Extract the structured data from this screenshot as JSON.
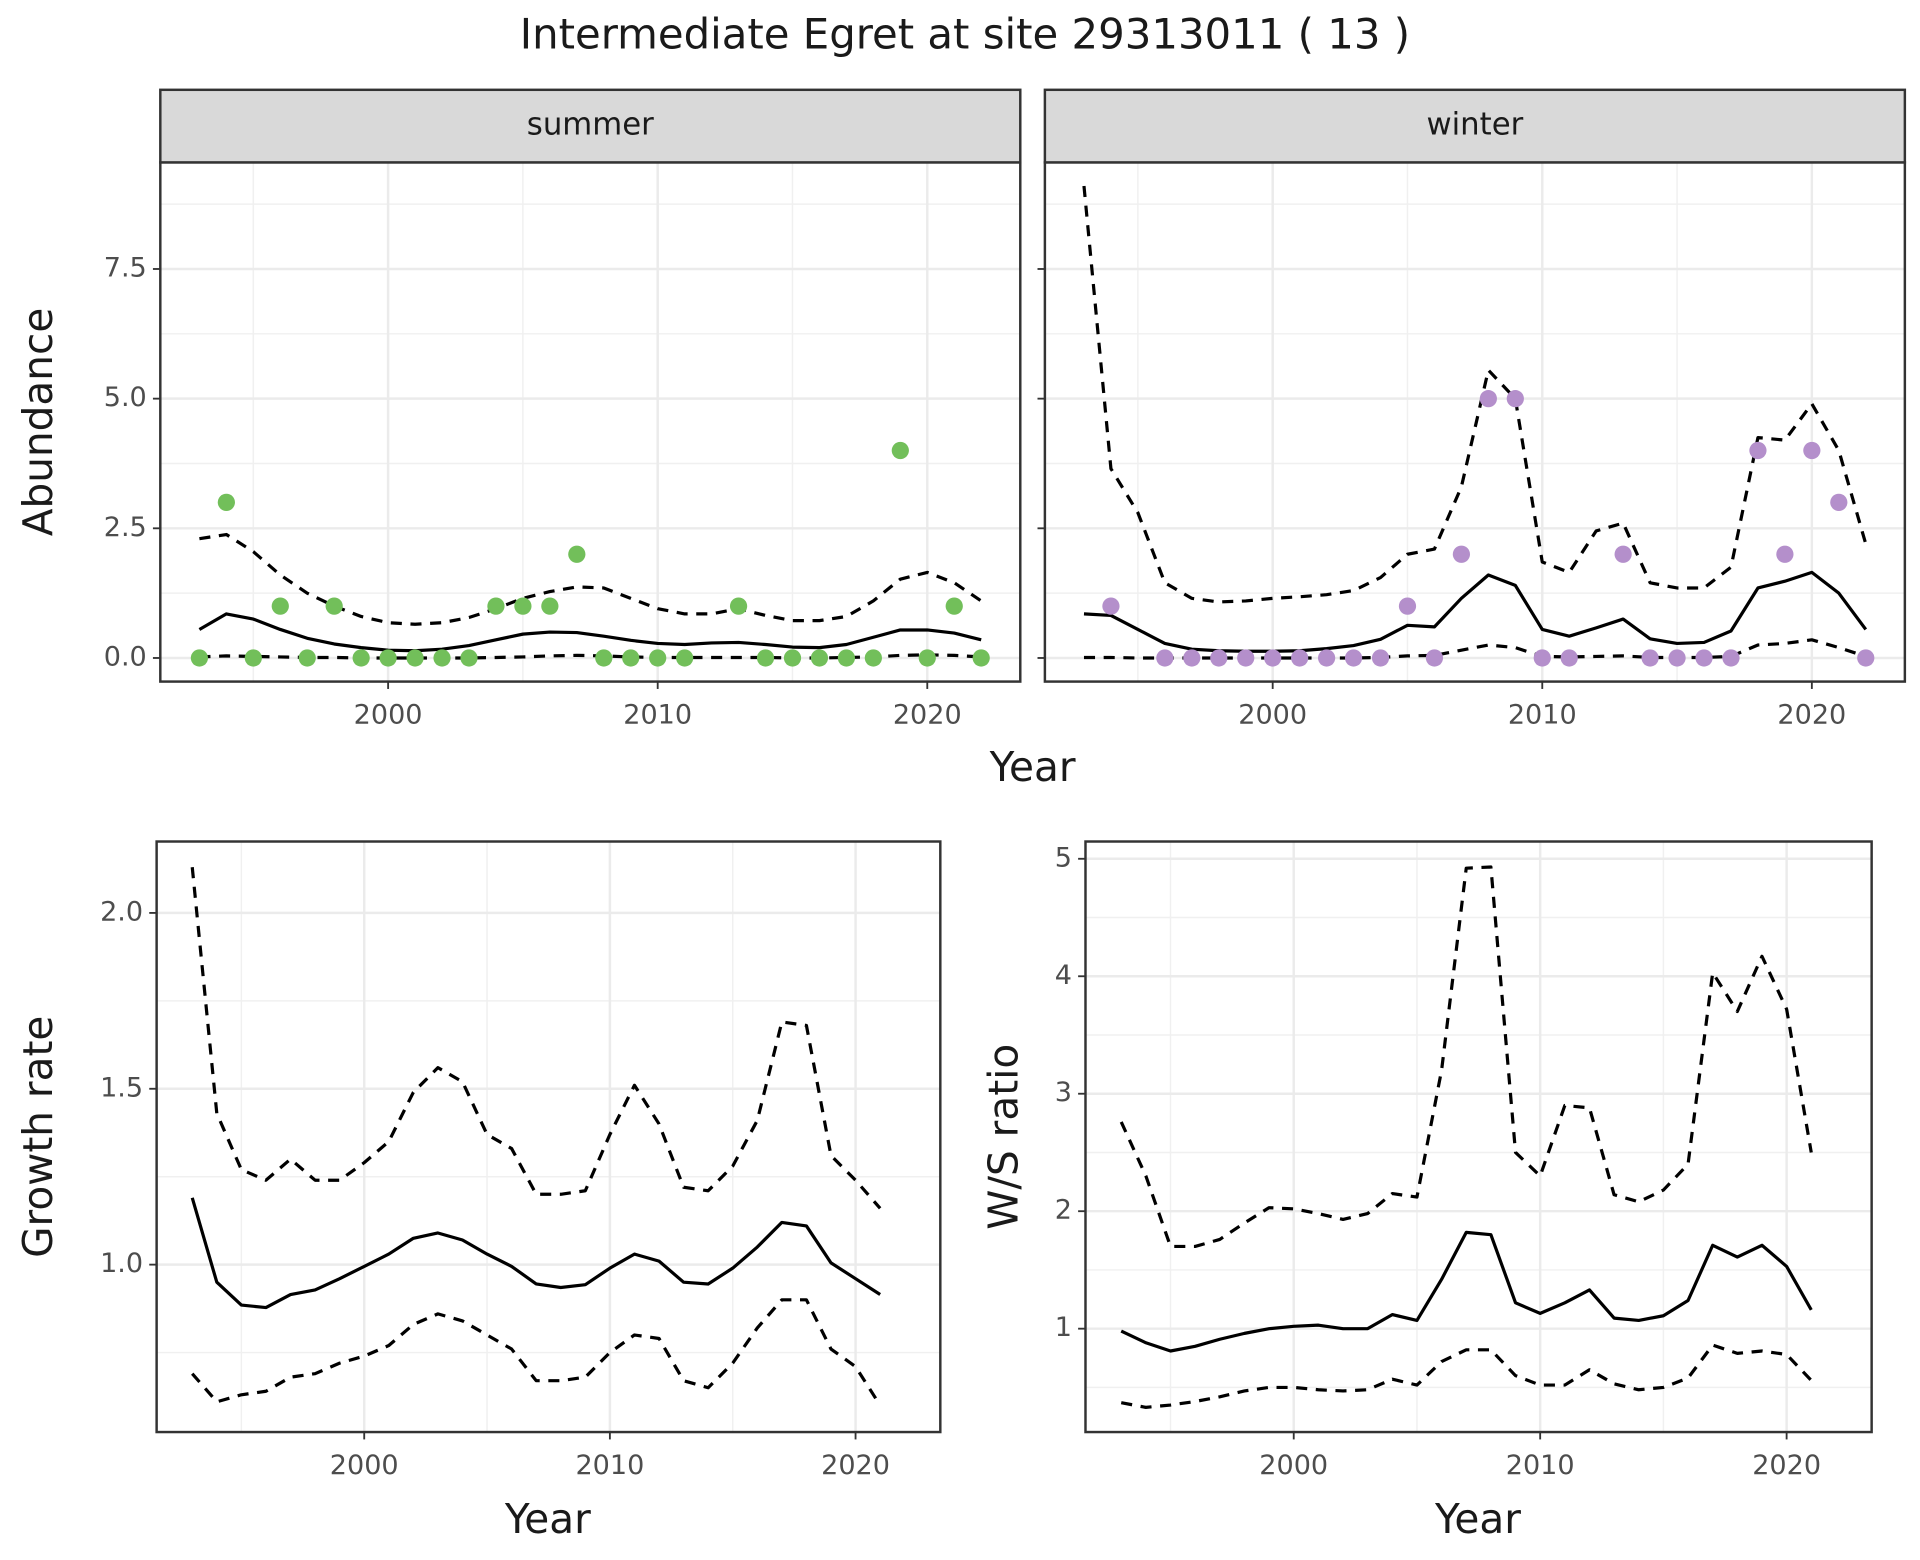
{
  "title": "Intermediate Egret at site 29313011 ( 13 )",
  "chart_data": [
    {
      "type": "line",
      "facet": "summer",
      "xlabel": "Year",
      "ylabel": "Abundance",
      "x": [
        1993,
        1994,
        1995,
        1996,
        1997,
        1998,
        1999,
        2000,
        2001,
        2002,
        2003,
        2004,
        2005,
        2006,
        2007,
        2008,
        2009,
        2010,
        2011,
        2012,
        2013,
        2014,
        2015,
        2016,
        2017,
        2018,
        2019,
        2020,
        2021,
        2022
      ],
      "xlim": [
        1991.55,
        2023.45
      ],
      "xticks": [
        2000,
        2010,
        2020
      ],
      "ylim": [
        -0.455,
        9.555
      ],
      "yticks": [
        {
          "value": 0,
          "label": "0.0"
        },
        2.5,
        {
          "value": 5,
          "label": "5.0"
        },
        7.5
      ],
      "grid": true,
      "series": [
        {
          "type": "line",
          "style": "solid",
          "color": "#000000",
          "values": [
            0.55,
            0.85,
            0.75,
            0.55,
            0.38,
            0.27,
            0.2,
            0.15,
            0.14,
            0.17,
            0.24,
            0.35,
            0.46,
            0.5,
            0.49,
            0.42,
            0.34,
            0.28,
            0.26,
            0.29,
            0.3,
            0.26,
            0.21,
            0.2,
            0.26,
            0.4,
            0.54,
            0.54,
            0.48,
            0.35
          ]
        },
        {
          "type": "line",
          "style": "dashed",
          "color": "#000000",
          "values": [
            2.3,
            2.38,
            2.05,
            1.6,
            1.25,
            1.0,
            0.8,
            0.68,
            0.65,
            0.68,
            0.78,
            0.95,
            1.15,
            1.28,
            1.37,
            1.35,
            1.15,
            0.95,
            0.85,
            0.85,
            0.95,
            0.82,
            0.72,
            0.72,
            0.8,
            1.1,
            1.52,
            1.65,
            1.45,
            1.1
          ]
        },
        {
          "type": "line",
          "style": "dashed",
          "color": "#000000",
          "values": [
            0.02,
            0.04,
            0.03,
            0.02,
            0.01,
            0.01,
            0,
            0,
            0,
            0,
            0,
            0.01,
            0.02,
            0.04,
            0.05,
            0.04,
            0.02,
            0.01,
            0.01,
            0.01,
            0.01,
            0.01,
            0,
            0,
            0.01,
            0.02,
            0.05,
            0.06,
            0.05,
            0.02
          ]
        },
        {
          "type": "scatter",
          "color": "#72bf5a",
          "values": [
            0,
            3,
            0,
            1,
            0,
            1,
            0,
            0,
            0,
            0,
            0,
            1,
            1,
            1,
            2,
            0,
            0,
            0,
            0,
            null,
            1,
            0,
            0,
            0,
            0,
            0,
            4,
            0,
            1,
            0
          ]
        }
      ]
    },
    {
      "type": "line",
      "facet": "winter",
      "x": [
        1993,
        1994,
        1995,
        1996,
        1997,
        1998,
        1999,
        2000,
        2001,
        2002,
        2003,
        2004,
        2005,
        2006,
        2007,
        2008,
        2009,
        2010,
        2011,
        2012,
        2013,
        2014,
        2015,
        2016,
        2017,
        2018,
        2019,
        2020,
        2021,
        2022
      ],
      "xlim": [
        1991.55,
        2023.45
      ],
      "xticks": [
        2000,
        2010,
        2020
      ],
      "ylim": [
        -0.455,
        9.555
      ],
      "yticks": [
        0,
        2.5,
        5,
        7.5
      ],
      "grid": true,
      "series": [
        {
          "type": "line",
          "style": "solid",
          "color": "#000000",
          "values": [
            0.85,
            0.82,
            0.55,
            0.28,
            0.17,
            0.14,
            0.13,
            0.13,
            0.14,
            0.18,
            0.24,
            0.36,
            0.63,
            0.6,
            1.15,
            1.6,
            1.4,
            0.55,
            0.42,
            0.58,
            0.75,
            0.37,
            0.28,
            0.3,
            0.52,
            1.35,
            1.48,
            1.65,
            1.25,
            0.55
          ]
        },
        {
          "type": "line",
          "style": "dashed",
          "color": "#000000",
          "values": [
            9.1,
            3.65,
            2.8,
            1.45,
            1.15,
            1.08,
            1.1,
            1.15,
            1.18,
            1.22,
            1.3,
            1.55,
            2.0,
            2.1,
            3.3,
            5.55,
            5.0,
            1.85,
            1.65,
            2.45,
            2.6,
            1.45,
            1.35,
            1.35,
            1.75,
            4.25,
            4.2,
            4.9,
            4.0,
            2.2
          ]
        },
        {
          "type": "line",
          "style": "dashed",
          "color": "#000000",
          "values": [
            0.01,
            0.01,
            0,
            0,
            0,
            0,
            0,
            0,
            0,
            0,
            0,
            0.01,
            0.04,
            0.05,
            0.15,
            0.25,
            0.2,
            0.03,
            0.02,
            0.03,
            0.04,
            0.01,
            0.01,
            0.01,
            0.03,
            0.25,
            0.28,
            0.35,
            0.2,
            0.03
          ]
        },
        {
          "type": "scatter",
          "color": "#b48fcb",
          "values": [
            null,
            1,
            null,
            0,
            0,
            0,
            0,
            0,
            0,
            0,
            0,
            0,
            1,
            0,
            2,
            5,
            5,
            0,
            0,
            null,
            2,
            0,
            0,
            0,
            0,
            4,
            2,
            4,
            3,
            0
          ]
        }
      ]
    },
    {
      "type": "line",
      "xlabel": "Year",
      "ylabel": "Growth rate",
      "x": [
        1993,
        1994,
        1995,
        1996,
        1997,
        1998,
        1999,
        2000,
        2001,
        2002,
        2003,
        2004,
        2005,
        2006,
        2007,
        2008,
        2009,
        2010,
        2011,
        2012,
        2013,
        2014,
        2015,
        2016,
        2017,
        2018,
        2019,
        2020,
        2021
      ],
      "xlim": [
        1991.55,
        2023.45
      ],
      "xticks": [
        2000,
        2010,
        2020
      ],
      "ylim": [
        0.524,
        2.203
      ],
      "yticks": [
        {
          "value": 1,
          "label": "1.0"
        },
        1.5,
        {
          "value": 2,
          "label": "2.0"
        }
      ],
      "grid": true,
      "series": [
        {
          "type": "line",
          "style": "solid",
          "color": "#000000",
          "values": [
            1.19,
            0.95,
            0.885,
            0.878,
            0.915,
            0.928,
            0.96,
            0.995,
            1.03,
            1.075,
            1.09,
            1.07,
            1.03,
            0.995,
            0.945,
            0.935,
            0.943,
            0.99,
            1.03,
            1.01,
            0.95,
            0.945,
            0.99,
            1.05,
            1.12,
            1.11,
            1.005,
            0.96,
            0.915
          ]
        },
        {
          "type": "line",
          "style": "dashed",
          "color": "#000000",
          "values": [
            2.13,
            1.43,
            1.27,
            1.24,
            1.3,
            1.24,
            1.24,
            1.29,
            1.35,
            1.49,
            1.56,
            1.52,
            1.37,
            1.33,
            1.2,
            1.2,
            1.21,
            1.37,
            1.51,
            1.4,
            1.22,
            1.21,
            1.28,
            1.41,
            1.69,
            1.68,
            1.31,
            1.24,
            1.16
          ]
        },
        {
          "type": "line",
          "style": "dashed",
          "color": "#000000",
          "values": [
            0.69,
            0.61,
            0.63,
            0.64,
            0.68,
            0.69,
            0.72,
            0.74,
            0.77,
            0.83,
            0.86,
            0.84,
            0.8,
            0.76,
            0.67,
            0.67,
            0.68,
            0.75,
            0.8,
            0.79,
            0.67,
            0.65,
            0.72,
            0.82,
            0.9,
            0.9,
            0.76,
            0.71,
            0.6
          ]
        }
      ]
    },
    {
      "type": "line",
      "xlabel": "Year",
      "ylabel": "W/S ratio",
      "x": [
        1993,
        1994,
        1995,
        1996,
        1997,
        1998,
        1999,
        2000,
        2001,
        2002,
        2003,
        2004,
        2005,
        2006,
        2007,
        2008,
        2009,
        2010,
        2011,
        2012,
        2013,
        2014,
        2015,
        2016,
        2017,
        2018,
        2019,
        2020,
        2021
      ],
      "xlim": [
        1991.55,
        2023.45
      ],
      "xticks": [
        2000,
        2010,
        2020
      ],
      "ylim": [
        0.12,
        5.147
      ],
      "yticks": [
        1,
        2,
        3,
        4,
        5
      ],
      "grid": true,
      "series": [
        {
          "type": "line",
          "style": "solid",
          "color": "#000000",
          "values": [
            0.98,
            0.88,
            0.81,
            0.85,
            0.91,
            0.96,
            1.0,
            1.02,
            1.03,
            1.0,
            1.0,
            1.12,
            1.07,
            1.42,
            1.82,
            1.8,
            1.22,
            1.13,
            1.22,
            1.33,
            1.09,
            1.07,
            1.11,
            1.24,
            1.71,
            1.61,
            1.71,
            1.53,
            1.16
          ]
        },
        {
          "type": "line",
          "style": "dashed",
          "color": "#000000",
          "values": [
            2.76,
            2.3,
            1.7,
            1.7,
            1.76,
            1.9,
            2.03,
            2.02,
            1.98,
            1.93,
            1.98,
            2.15,
            2.12,
            3.2,
            4.92,
            4.93,
            2.5,
            2.3,
            2.9,
            2.88,
            2.14,
            2.08,
            2.18,
            2.4,
            4.03,
            3.7,
            4.17,
            3.72,
            2.5
          ]
        },
        {
          "type": "line",
          "style": "dashed",
          "color": "#000000",
          "values": [
            0.37,
            0.33,
            0.35,
            0.38,
            0.42,
            0.47,
            0.5,
            0.5,
            0.48,
            0.47,
            0.48,
            0.57,
            0.52,
            0.72,
            0.82,
            0.82,
            0.6,
            0.52,
            0.52,
            0.65,
            0.53,
            0.48,
            0.5,
            0.58,
            0.86,
            0.79,
            0.81,
            0.78,
            0.56
          ]
        }
      ]
    }
  ]
}
